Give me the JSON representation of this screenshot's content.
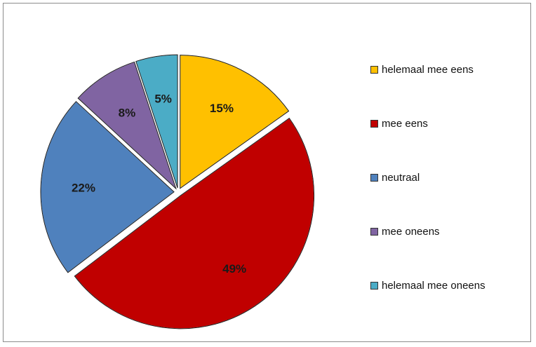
{
  "chart_data": {
    "type": "pie",
    "title": "",
    "legend_position": "right",
    "start_angle_deg": 0,
    "direction": "clockwise",
    "slices": [
      {
        "name": "helemaal mee eens",
        "value": 15,
        "label": "15%",
        "color": "#FFC000"
      },
      {
        "name": "mee eens",
        "value": 49,
        "label": "49%",
        "color": "#C00000"
      },
      {
        "name": "neutraal",
        "value": 22,
        "label": "22%",
        "color": "#4F81BD"
      },
      {
        "name": "mee oneens",
        "value": 8,
        "label": "8%",
        "color": "#8064A2"
      },
      {
        "name": "helemaal mee oneens",
        "value": 5,
        "label": "5%",
        "color": "#4BACC6"
      }
    ]
  }
}
